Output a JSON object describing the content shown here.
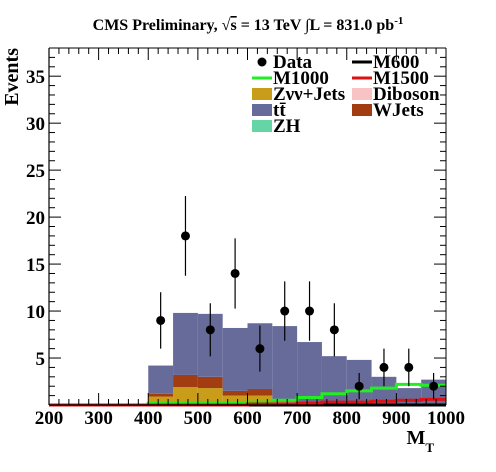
{
  "chart_data": {
    "type": "bar",
    "stacked": true,
    "title_parts": [
      "CMS Preliminary, ",
      "√",
      "s",
      " = 13 TeV ",
      "∫",
      "L = 831.0 pb",
      "-1"
    ],
    "xlabel": "M",
    "xlabel_sub": "T",
    "ylabel": "Events",
    "xlim": [
      200,
      1000
    ],
    "ylim": [
      0,
      38
    ],
    "x_ticks": [
      200,
      300,
      400,
      500,
      600,
      700,
      800,
      900,
      1000
    ],
    "y_ticks": [
      5,
      10,
      15,
      20,
      25,
      30,
      35
    ],
    "bin_edges": [
      400,
      450,
      500,
      550,
      600,
      650,
      700,
      750,
      800,
      850,
      900,
      950,
      1000
    ],
    "background_stack": [
      {
        "name": "ZH",
        "color": "#66d5a5",
        "values": [
          0.1,
          0.1,
          0.1,
          0.1,
          0.1,
          0.1,
          0.1,
          0.1,
          0.0,
          0.0,
          0.0,
          0.0
        ]
      },
      {
        "name": "Zνν+Jets",
        "color": "#c99d1a",
        "values": [
          0.8,
          1.8,
          1.7,
          0.9,
          0.9,
          0.2,
          0.2,
          0.0,
          0.0,
          0.0,
          0.0,
          0.0
        ]
      },
      {
        "name": "WJets",
        "color": "#a13d10",
        "values": [
          0.3,
          1.3,
          1.2,
          0.5,
          0.7,
          0.0,
          0.0,
          0.0,
          0.0,
          0.0,
          0.0,
          0.0
        ]
      },
      {
        "name": "Diboson",
        "color": "#f7c3c3",
        "values": [
          0.0,
          0.0,
          0.0,
          0.0,
          0.0,
          0.0,
          0.0,
          0.0,
          0.0,
          0.0,
          0.0,
          0.0
        ]
      },
      {
        "name": "tt̄",
        "color": "#676b9a",
        "values": [
          3.0,
          6.6,
          6.7,
          6.7,
          7.0,
          8.1,
          6.4,
          5.1,
          4.8,
          3.0,
          1.8,
          2.7
        ]
      }
    ],
    "signals": [
      {
        "name": "M600",
        "color": "#000000",
        "values": [
          0.0,
          0.0,
          0.0,
          0.0,
          0.0,
          0.0,
          0.0,
          0.0,
          0.0,
          0.0,
          0.0,
          0.0
        ]
      },
      {
        "name": "M1000",
        "color": "#22ee22",
        "values": [
          0.2,
          0.2,
          0.2,
          0.2,
          0.3,
          0.5,
          0.8,
          1.2,
          1.5,
          1.8,
          2.2,
          2.1
        ]
      },
      {
        "name": "M1500",
        "color": "#dd1111",
        "values": [
          0.0,
          0.0,
          0.0,
          0.0,
          0.1,
          0.1,
          0.2,
          0.3,
          0.3,
          0.4,
          0.5,
          0.6
        ]
      }
    ],
    "data": {
      "name": "Data",
      "x": [
        425,
        475,
        525,
        575,
        625,
        675,
        725,
        775,
        825,
        875,
        925,
        975
      ],
      "y": [
        9,
        18,
        8,
        14,
        6,
        10,
        10,
        8,
        2,
        4,
        4,
        2
      ],
      "err": [
        3.0,
        4.24,
        2.83,
        3.74,
        2.45,
        3.16,
        3.16,
        2.83,
        1.41,
        2.0,
        2.0,
        1.41
      ]
    },
    "legend": {
      "placement": "top-right",
      "columns": [
        [
          {
            "label": "Data",
            "kind": "marker"
          },
          {
            "label": "M1000",
            "kind": "line",
            "color": "#22ee22"
          },
          {
            "label": "Zνν+Jets",
            "kind": "box",
            "color": "#c99d1a"
          },
          {
            "label": "tt̄",
            "kind": "box",
            "color": "#676b9a"
          },
          {
            "label": "ZH",
            "kind": "box",
            "color": "#66d5a5"
          }
        ],
        [
          {
            "label": "M600",
            "kind": "line",
            "color": "#000000"
          },
          {
            "label": "M1500",
            "kind": "line",
            "color": "#dd1111"
          },
          {
            "label": "Diboson",
            "kind": "box",
            "color": "#f7c3c3"
          },
          {
            "label": "WJets",
            "kind": "box",
            "color": "#a13d10"
          }
        ]
      ]
    }
  }
}
